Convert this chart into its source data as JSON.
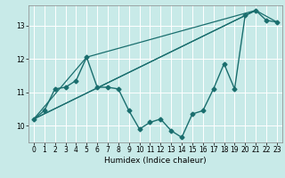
{
  "title": "",
  "xlabel": "Humidex (Indice chaleur)",
  "background_color": "#c8eae8",
  "grid_color": "#ffffff",
  "line_color": "#1a6e6e",
  "xlim": [
    -0.5,
    23.5
  ],
  "ylim": [
    9.5,
    13.6
  ],
  "yticks": [
    10,
    11,
    12,
    13
  ],
  "xticks": [
    0,
    1,
    2,
    3,
    4,
    5,
    6,
    7,
    8,
    9,
    10,
    11,
    12,
    13,
    14,
    15,
    16,
    17,
    18,
    19,
    20,
    21,
    22,
    23
  ],
  "main_x": [
    0,
    1,
    2,
    3,
    4,
    5,
    6,
    7,
    8,
    9,
    10,
    11,
    12,
    13,
    14,
    15,
    16,
    17,
    18,
    19,
    20,
    21,
    22,
    23
  ],
  "main_y": [
    10.2,
    10.45,
    11.1,
    11.15,
    11.35,
    12.05,
    11.15,
    11.15,
    11.1,
    10.45,
    9.9,
    10.1,
    10.2,
    9.85,
    9.65,
    10.35,
    10.45,
    11.1,
    11.85,
    11.1,
    13.3,
    13.45,
    13.15,
    13.1
  ],
  "line2_x": [
    0,
    21
  ],
  "line2_y": [
    10.2,
    13.45
  ],
  "line3_x": [
    0,
    5,
    21
  ],
  "line3_y": [
    10.2,
    12.05,
    13.45
  ],
  "line4_x": [
    0,
    21,
    23
  ],
  "line4_y": [
    10.2,
    13.45,
    13.1
  ]
}
